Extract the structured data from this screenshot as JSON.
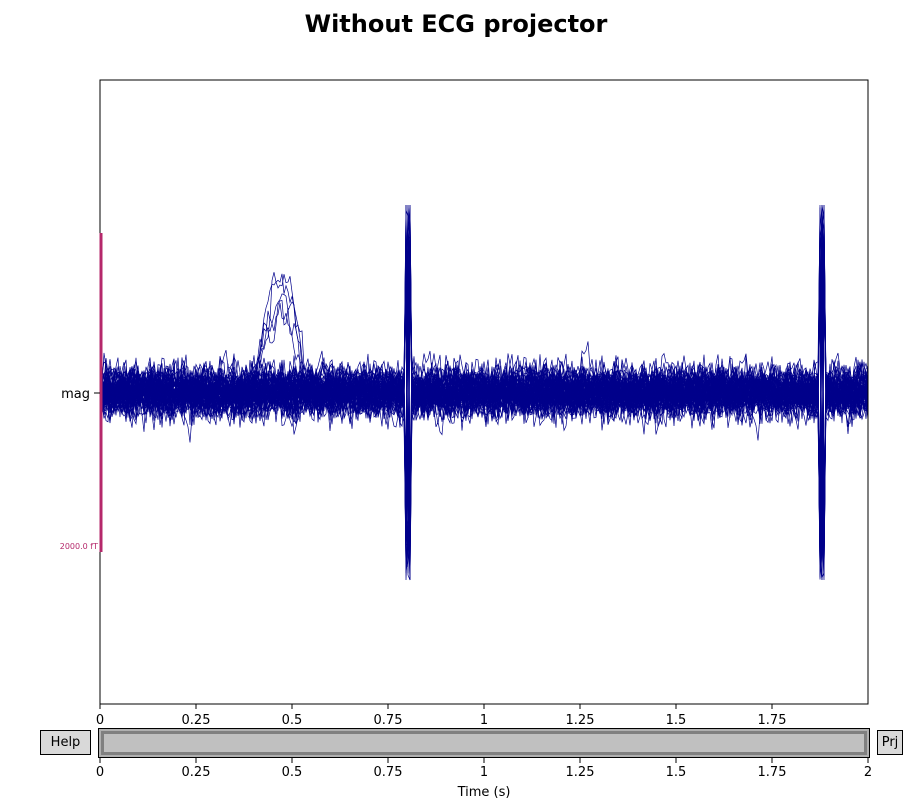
{
  "window": {
    "title": "Without ECG projector"
  },
  "trace_plot": {
    "channel_label": "mag",
    "scale_label": "2000.0 fT",
    "trace_color": "#00008b",
    "scale_color": "#b5286b",
    "x_ticks": [
      "0",
      "0.25",
      "0.5",
      "0.75",
      "1",
      "1.25",
      "1.5",
      "1.75"
    ],
    "x_range": [
      0,
      2
    ]
  },
  "scrollbar": {
    "x_ticks": [
      "0",
      "0.25",
      "0.5",
      "0.75",
      "1",
      "1.25",
      "1.5",
      "1.75",
      "2"
    ],
    "xlabel": "Time (s)",
    "view_start": 0,
    "view_end": 2
  },
  "buttons": {
    "help_label": "Help",
    "proj_label": "Prj"
  }
}
